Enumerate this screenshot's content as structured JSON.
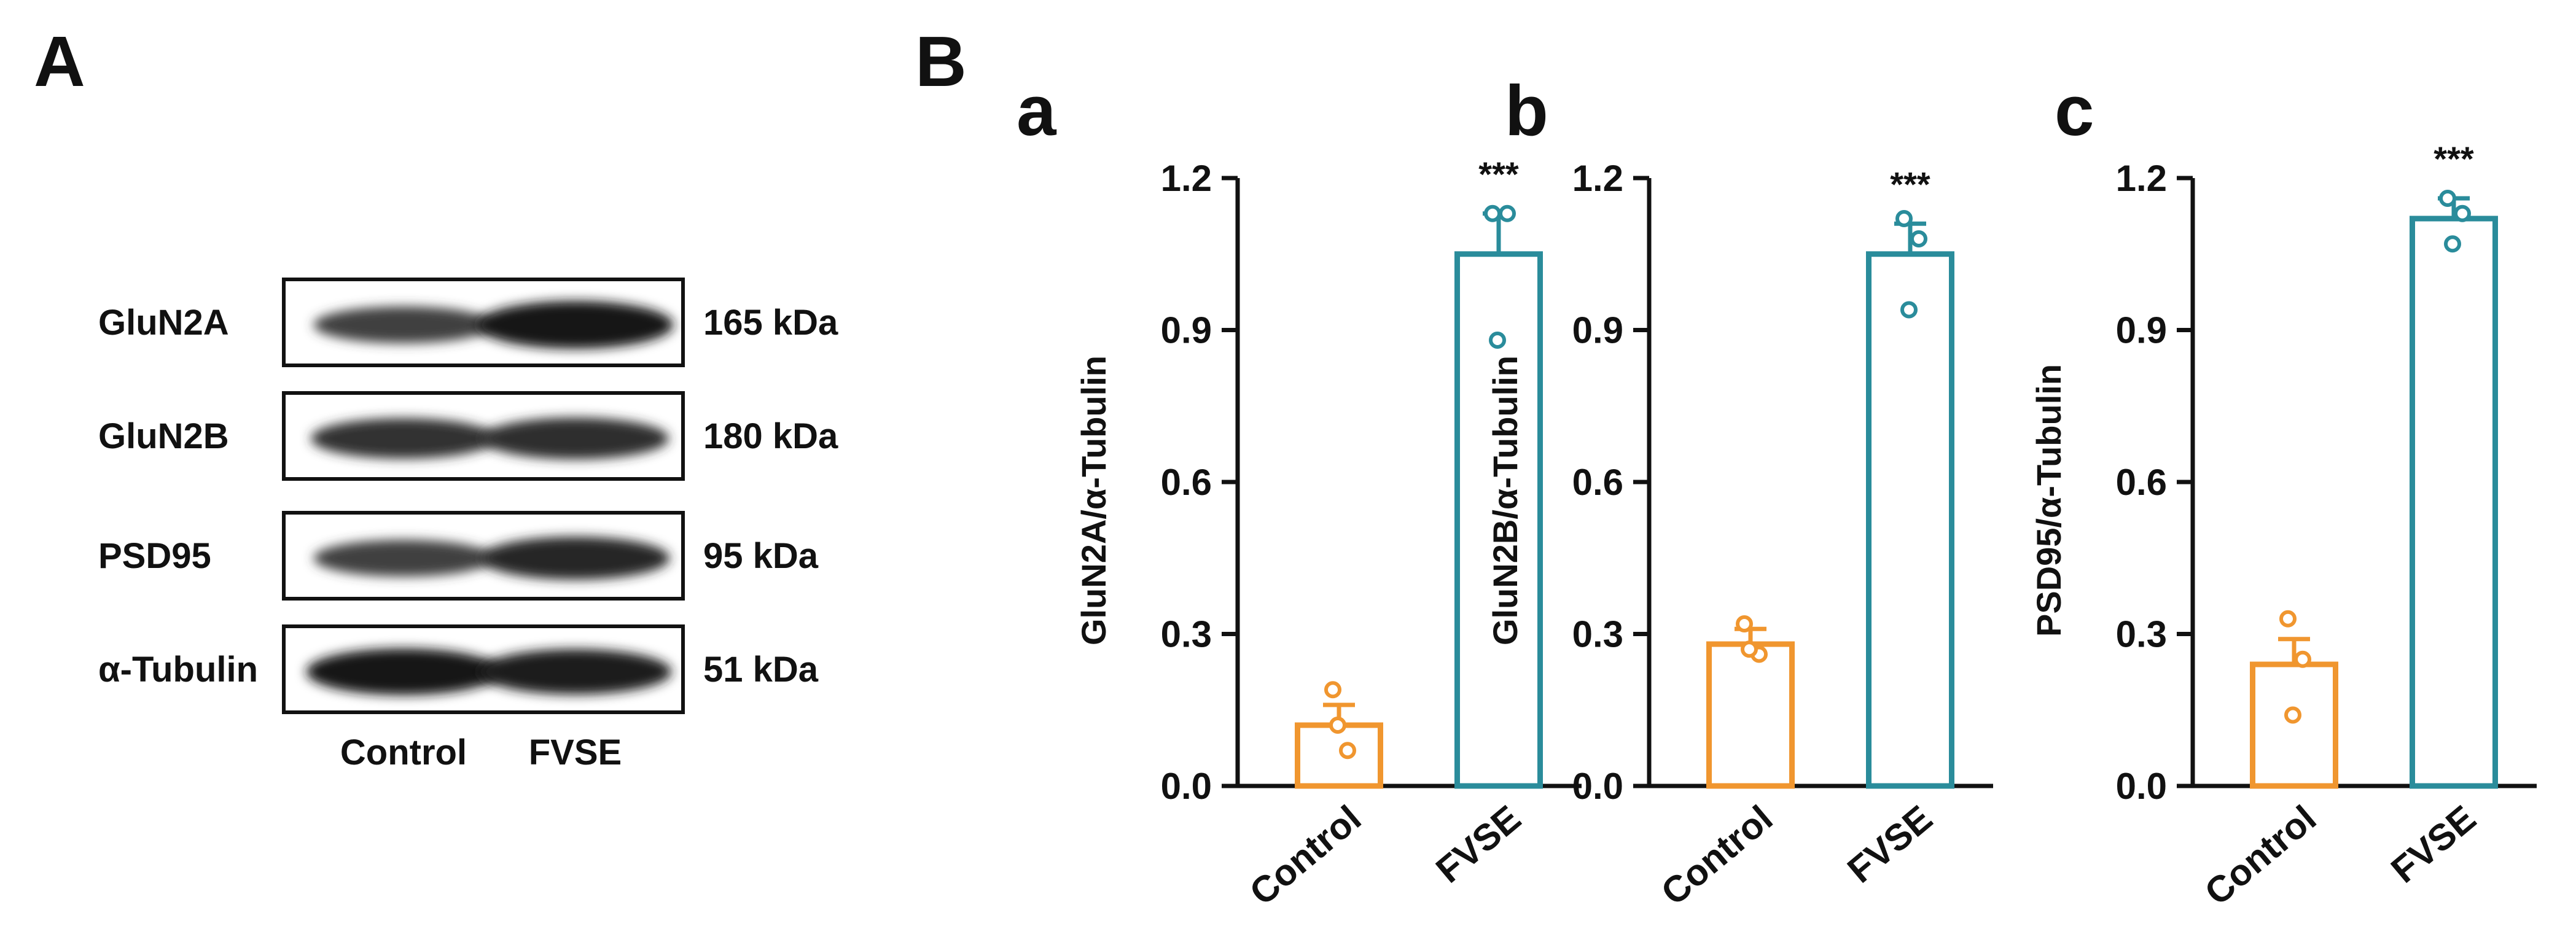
{
  "figure": {
    "panel_a_label": "A",
    "panel_b_label": "B"
  },
  "blot": {
    "rows": [
      {
        "protein": "GluN2A",
        "size": "165 kDa"
      },
      {
        "protein": "GluN2B",
        "size": "180 kDa"
      },
      {
        "protein": "PSD95",
        "size": "95 kDa"
      },
      {
        "protein": "α-Tubulin",
        "size": "51 kDa"
      }
    ],
    "lanes": [
      "Control",
      "FVSE"
    ],
    "band_intensity": [
      [
        0.55,
        1.0
      ],
      [
        0.7,
        0.75
      ],
      [
        0.55,
        0.8
      ],
      [
        0.95,
        0.9
      ]
    ]
  },
  "colors": {
    "control": "#F0962F",
    "fvse": "#2A8C9B",
    "axis": "#111111"
  },
  "chart_data": [
    {
      "type": "bar",
      "panel": "a",
      "title": "",
      "ylabel": "GluN2A/α-Tubulin",
      "xlabel": "",
      "categories": [
        "Control",
        "FVSE"
      ],
      "values": [
        0.12,
        1.05
      ],
      "errors": [
        0.04,
        0.08
      ],
      "points": [
        [
          0.19,
          0.07,
          0.12
        ],
        [
          1.13,
          1.13,
          0.88
        ]
      ],
      "ylim": [
        0,
        1.2
      ],
      "yticks": [
        "0.0",
        "0.3",
        "0.6",
        "0.9",
        "1.2"
      ],
      "significance": [
        "",
        "***"
      ]
    },
    {
      "type": "bar",
      "panel": "b",
      "title": "",
      "ylabel": "GluN2B/α-Tubulin",
      "xlabel": "",
      "categories": [
        "Control",
        "FVSE"
      ],
      "values": [
        0.28,
        1.05
      ],
      "errors": [
        0.03,
        0.06
      ],
      "points": [
        [
          0.32,
          0.26,
          0.27
        ],
        [
          1.12,
          1.08,
          0.94
        ]
      ],
      "ylim": [
        0,
        1.2
      ],
      "yticks": [
        "0.0",
        "0.3",
        "0.6",
        "0.9",
        "1.2"
      ],
      "significance": [
        "",
        "***"
      ]
    },
    {
      "type": "bar",
      "panel": "c",
      "title": "",
      "ylabel": "PSD95/α-Tubulin",
      "xlabel": "",
      "categories": [
        "Control",
        "FVSE"
      ],
      "values": [
        0.24,
        1.12
      ],
      "errors": [
        0.05,
        0.04
      ],
      "points": [
        [
          0.33,
          0.25,
          0.14
        ],
        [
          1.16,
          1.13,
          1.07
        ]
      ],
      "ylim": [
        0,
        1.2
      ],
      "yticks": [
        "0.0",
        "0.3",
        "0.6",
        "0.9",
        "1.2"
      ],
      "significance": [
        "",
        "***"
      ]
    }
  ]
}
